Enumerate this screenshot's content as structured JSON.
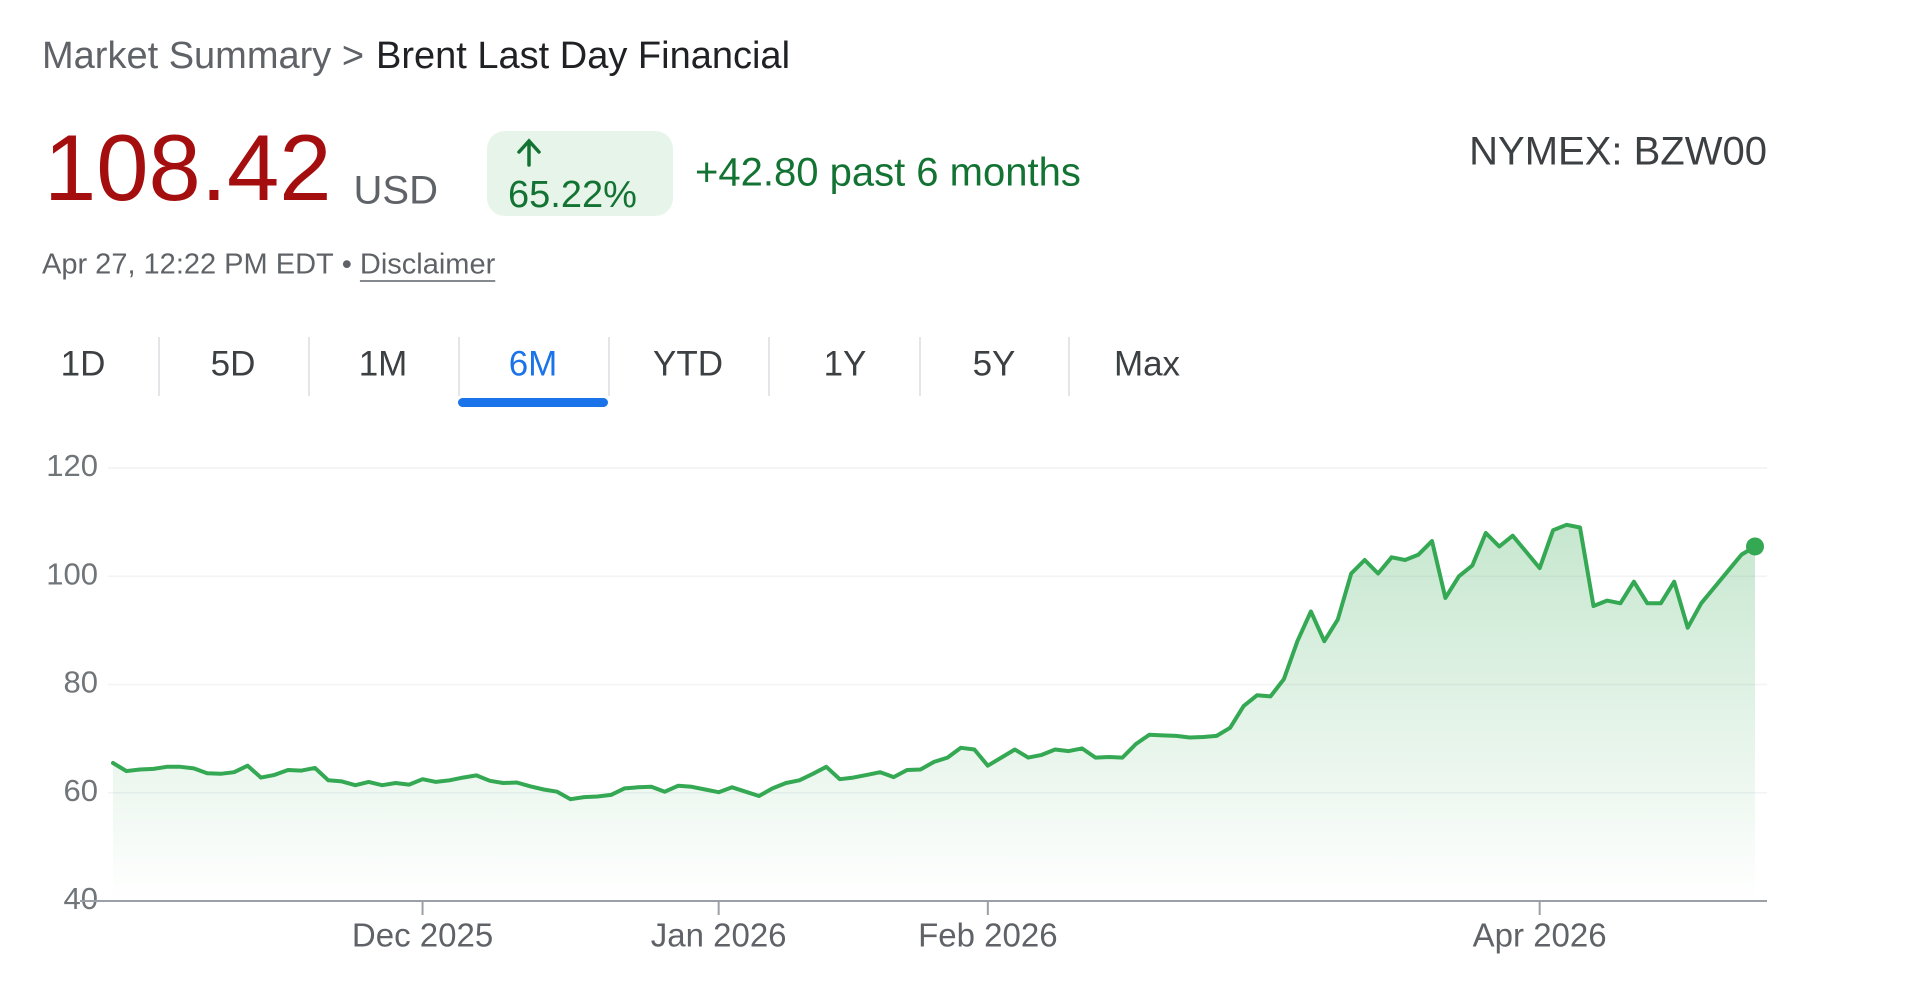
{
  "header": {
    "breadcrumb": "Market Summary >",
    "title": "Brent Last Day Financial",
    "price": "108.42",
    "currency": "USD",
    "change_percent": "65.22%",
    "change": "+42.80 past 6 months",
    "exchange": "NYMEX: BZW00",
    "timestamp": "Apr 27, 12:22 PM EDT",
    "separator": "•",
    "disclaimer": "Disclaimer"
  },
  "tabs": {
    "items": [
      "1D",
      "5D",
      "1M",
      "6M",
      "YTD",
      "1Y",
      "5Y",
      "Max"
    ],
    "selected": "6M"
  },
  "chart_data": {
    "type": "line",
    "color": "#34a853",
    "grid": true,
    "ylim": [
      40,
      120
    ],
    "yticks": [
      40,
      60,
      80,
      100,
      120
    ],
    "categories": [
      null,
      null,
      null,
      null,
      null,
      null,
      null,
      null,
      null,
      null,
      null,
      null,
      null,
      null,
      null,
      null,
      null,
      null,
      null,
      null,
      null,
      null,
      null,
      "Dec 2025",
      null,
      null,
      null,
      null,
      null,
      null,
      null,
      null,
      null,
      null,
      null,
      null,
      null,
      null,
      null,
      null,
      null,
      null,
      null,
      null,
      null,
      "Jan 2026",
      null,
      null,
      null,
      null,
      null,
      null,
      null,
      null,
      null,
      null,
      null,
      null,
      null,
      null,
      null,
      null,
      null,
      null,
      null,
      "Feb 2026",
      null,
      null,
      null,
      null,
      null,
      null,
      null,
      null,
      null,
      null,
      null,
      null,
      null,
      null,
      null,
      null,
      null,
      null,
      null,
      null,
      null,
      null,
      null,
      null,
      null,
      null,
      null,
      null,
      null,
      null,
      null,
      null,
      null,
      null,
      null,
      null,
      null,
      null,
      null,
      null,
      "Apr 2026",
      null,
      null,
      null,
      null,
      null,
      null,
      null,
      null,
      null,
      null,
      null,
      null,
      null,
      null,
      null,
      null
    ],
    "values": [
      65.5,
      64,
      64.3,
      64.4,
      64.8,
      64.8,
      64.5,
      63.6,
      63.5,
      63.8,
      65,
      62.8,
      63.3,
      64.2,
      64.1,
      64.6,
      62.3,
      62.1,
      61.4,
      62,
      61.4,
      61.8,
      61.5,
      62.5,
      62,
      62.3,
      62.8,
      63.2,
      62.2,
      61.8,
      61.9,
      61.2,
      60.6,
      60.2,
      58.8,
      59.2,
      59.3,
      59.6,
      60.8,
      61,
      61.1,
      60.2,
      61.3,
      61.1,
      60.6,
      60.1,
      61,
      60.2,
      59.4,
      60.8,
      61.8,
      62.3,
      63.5,
      64.8,
      62.5,
      62.8,
      63.3,
      63.8,
      62.9,
      64.2,
      64.3,
      65.7,
      66.5,
      68.3,
      68,
      65,
      66.5,
      68,
      66.5,
      67,
      68,
      67.7,
      68.2,
      66.5,
      66.6,
      66.5,
      69,
      70.7,
      70.6,
      70.5,
      70.2,
      70.3,
      70.5,
      72,
      76,
      78,
      77.8,
      81,
      88,
      93.5,
      88,
      92,
      100.5,
      103,
      100.5,
      103.5,
      103,
      104,
      106.5,
      96,
      100,
      102,
      108,
      105.5,
      107.5,
      104.5,
      101.5,
      108.5,
      109.5,
      109,
      94.5,
      95.5,
      95,
      99,
      95,
      95,
      99,
      90.5,
      95,
      98,
      101,
      104,
      105.5
    ]
  }
}
